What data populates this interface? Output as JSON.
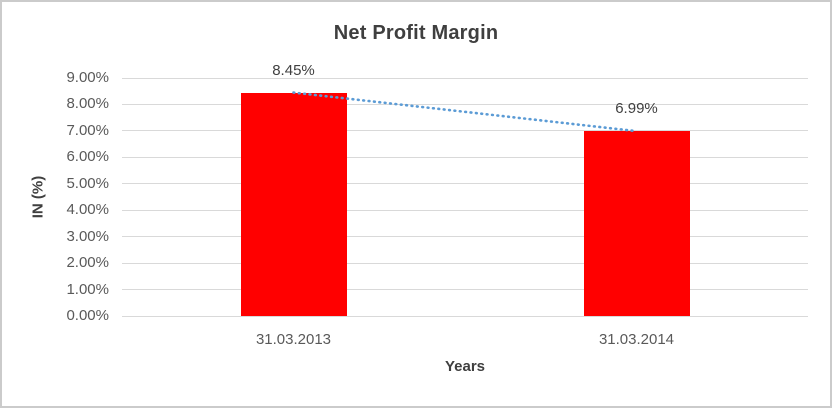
{
  "window": {
    "background": "#ffffff",
    "border_color": "#cbcbcb"
  },
  "chart_data": {
    "type": "bar",
    "title": "Net Profit Margin",
    "xlabel": "Years",
    "ylabel": "IN (%)",
    "categories": [
      "31.03.2013",
      "31.03.2014"
    ],
    "values": [
      8.45,
      6.99
    ],
    "value_labels": [
      "8.45%",
      "6.99%"
    ],
    "ylim": [
      0,
      9
    ],
    "ytick_labels": [
      "0.00%",
      "1.00%",
      "2.00%",
      "3.00%",
      "4.00%",
      "5.00%",
      "6.00%",
      "7.00%",
      "8.00%",
      "9.00%"
    ],
    "grid": true,
    "legend": false,
    "colors": {
      "bar": "#ff0000",
      "gridline": "#d9d9d9",
      "trendline": "#5b9bd5",
      "title_text": "#3f3f3f",
      "axis_text": "#595959",
      "data_label_text": "#404040"
    },
    "trendline": {
      "type": "linear",
      "style": "dotted",
      "points": [
        8.45,
        6.99
      ]
    }
  }
}
